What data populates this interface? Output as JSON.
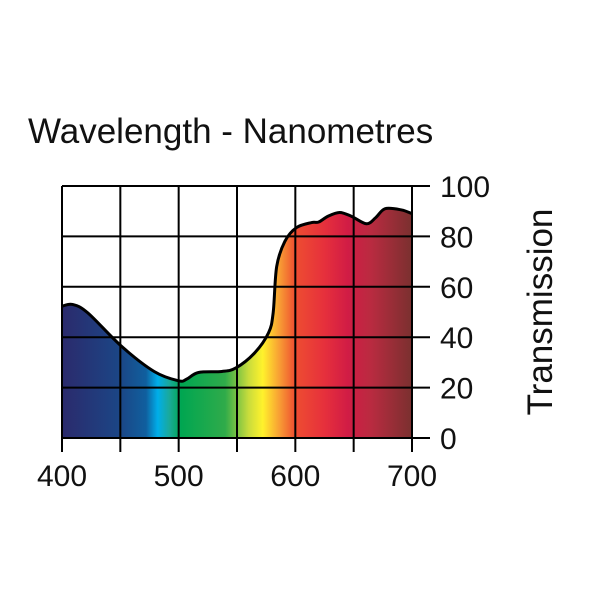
{
  "chart_data": {
    "type": "area",
    "title": "Wavelength - Nanometres",
    "xlabel": "Wavelength - Nanometres",
    "ylabel": "Transmission",
    "xlim": [
      400,
      700
    ],
    "ylim": [
      0,
      100
    ],
    "x_ticks": [
      400,
      450,
      500,
      550,
      600,
      650,
      700
    ],
    "x_tick_labels": [
      "400",
      "500",
      "600",
      "700"
    ],
    "x_tick_label_values": [
      400,
      500,
      600,
      700
    ],
    "y_ticks": [
      0,
      20,
      40,
      60,
      80,
      100
    ],
    "y_tick_labels": [
      "0",
      "20",
      "40",
      "60",
      "80",
      "100"
    ],
    "y_axis_side": "right",
    "grid": true,
    "series": [
      {
        "name": "Transmission",
        "x": [
          400,
          409,
          422,
          451,
          479,
          500,
          507,
          517,
          537,
          549,
          565,
          577,
          581,
          584,
          591,
          601,
          614,
          620,
          628,
          638,
          648,
          661,
          669,
          677,
          691,
          700
        ],
        "y": [
          52.3,
          53,
          49.7,
          36.4,
          26.4,
          22.7,
          23.4,
          26,
          26.4,
          27.8,
          33.7,
          41.7,
          49.7,
          68,
          78,
          83.5,
          85.5,
          85.7,
          88,
          89.5,
          88,
          85,
          87.5,
          91,
          90.5,
          89
        ]
      }
    ],
    "spectrum_colors": [
      {
        "wavelength": 400,
        "color": "#2b2a6c"
      },
      {
        "wavelength": 450,
        "color": "#1b4686"
      },
      {
        "wavelength": 472,
        "color": "#105f9e"
      },
      {
        "wavelength": 482,
        "color": "#00aeea"
      },
      {
        "wavelength": 492,
        "color": "#1aa99a"
      },
      {
        "wavelength": 502,
        "color": "#00a651"
      },
      {
        "wavelength": 540,
        "color": "#30ab4a"
      },
      {
        "wavelength": 560,
        "color": "#c9dc3c"
      },
      {
        "wavelength": 572,
        "color": "#fff22c"
      },
      {
        "wavelength": 586,
        "color": "#f8a034"
      },
      {
        "wavelength": 600,
        "color": "#ee4d31"
      },
      {
        "wavelength": 625,
        "color": "#e6303c"
      },
      {
        "wavelength": 645,
        "color": "#d11c45"
      },
      {
        "wavelength": 665,
        "color": "#b92b40"
      },
      {
        "wavelength": 700,
        "color": "#7a302f"
      }
    ]
  }
}
